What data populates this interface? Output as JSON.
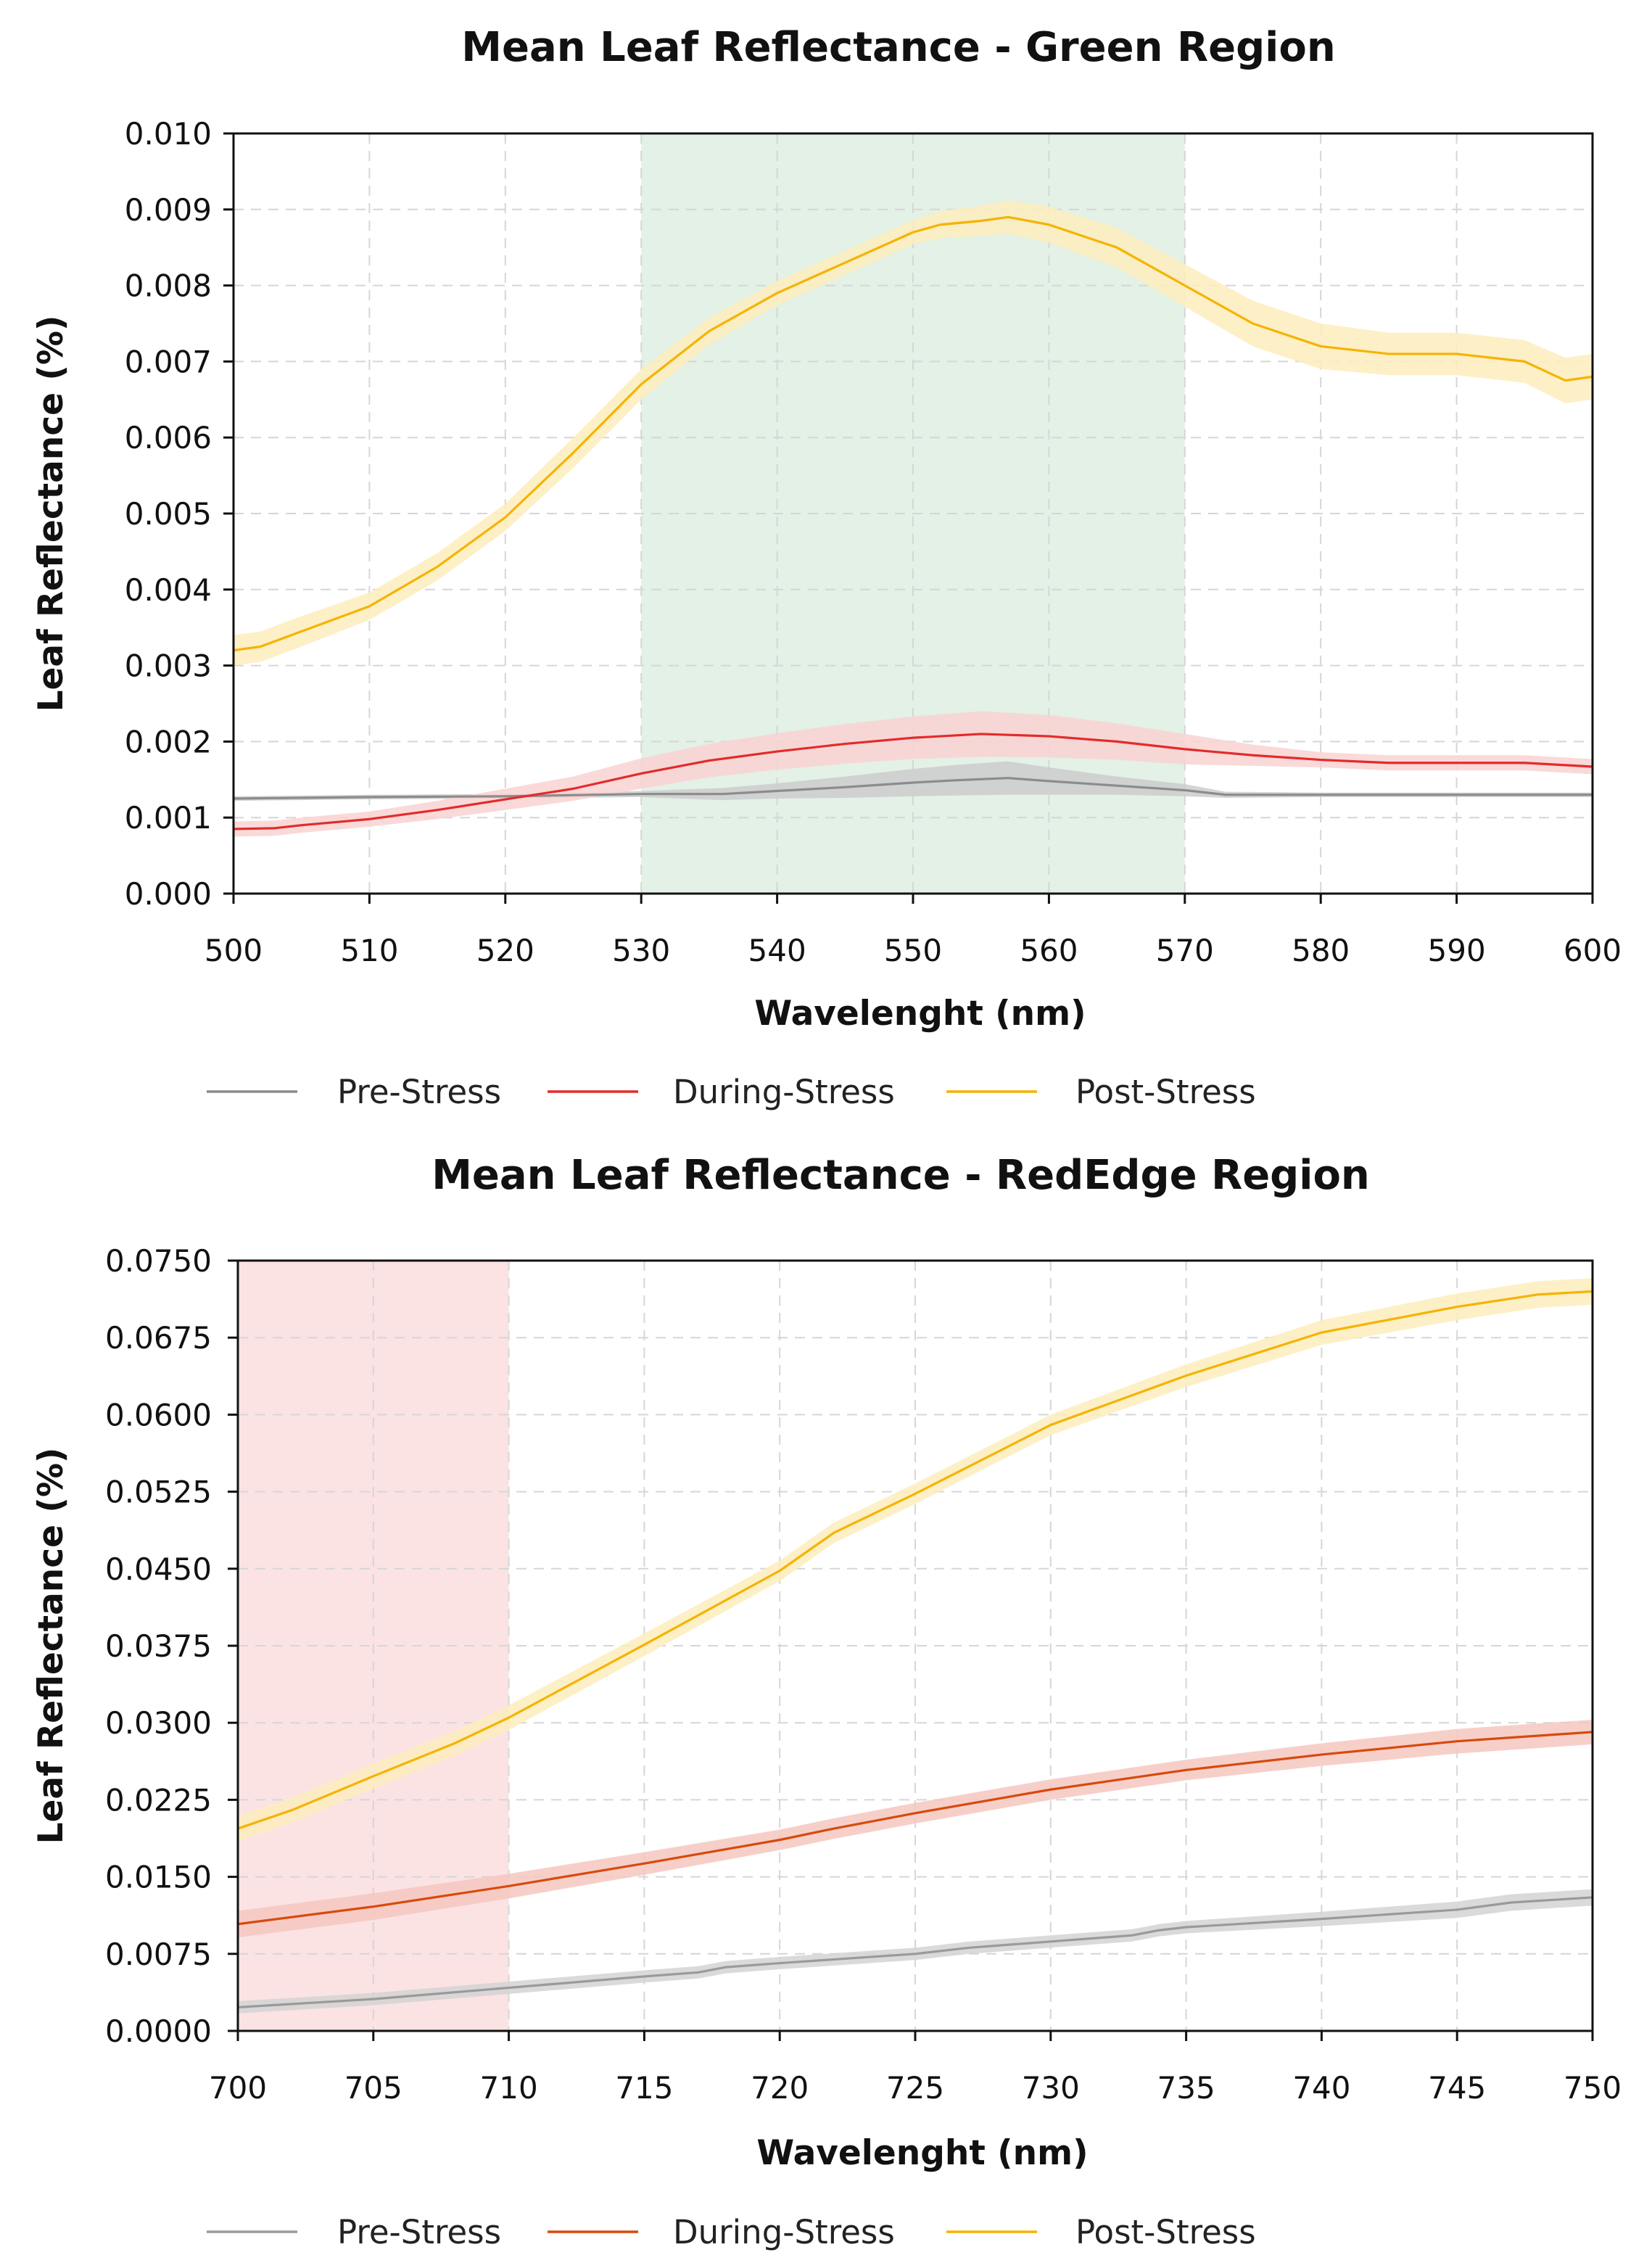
{
  "figure": {
    "background": "#ffffff"
  },
  "chart_data": [
    {
      "type": "line",
      "title": "Mean Leaf Reflectance - Green Region",
      "xlabel": "Wavelenght (nm)",
      "ylabel": "Leaf Reflectance (%)",
      "xlim": [
        500,
        600
      ],
      "ylim": [
        0.0,
        0.01
      ],
      "xticks": [
        500,
        510,
        520,
        530,
        540,
        550,
        560,
        570,
        580,
        590,
        600
      ],
      "yticks": [
        0.0,
        0.001,
        0.002,
        0.003,
        0.004,
        0.005,
        0.006,
        0.007,
        0.008,
        0.009,
        0.01
      ],
      "xtick_labels": [
        "500",
        "510",
        "520",
        "530",
        "540",
        "550",
        "560",
        "570",
        "580",
        "590",
        "600"
      ],
      "ytick_labels": [
        "0.000",
        "0.001",
        "0.002",
        "0.003",
        "0.004",
        "0.005",
        "0.006",
        "0.007",
        "0.008",
        "0.009",
        "0.010"
      ],
      "grid": true,
      "highlight_region": {
        "x_start": 530,
        "x_end": 570,
        "color": "#e3f1e6"
      },
      "legend": {
        "position": "below",
        "entries": [
          "Pre-Stress",
          "During-Stress",
          "Post-Stress"
        ]
      },
      "series": [
        {
          "name": "Pre-Stress",
          "color": "#8c8c8c",
          "band_color": "#cccccc",
          "x": [
            500,
            510,
            520,
            530,
            536,
            540,
            545,
            550,
            553,
            557,
            560,
            565,
            570,
            573,
            580,
            590,
            600
          ],
          "y": [
            0.00125,
            0.00127,
            0.00128,
            0.00131,
            0.00131,
            0.00135,
            0.0014,
            0.00146,
            0.00149,
            0.00152,
            0.00148,
            0.00142,
            0.00136,
            0.0013,
            0.0013,
            0.0013,
            0.0013
          ],
          "band": [
            3e-05,
            3e-05,
            3e-05,
            4e-05,
            8e-05,
            0.0001,
            0.00014,
            0.00018,
            0.0002,
            0.00022,
            0.00018,
            0.00012,
            8e-05,
            4e-05,
            3e-05,
            3e-05,
            3e-05
          ]
        },
        {
          "name": "During-Stress",
          "color": "#e32b2b",
          "band_color": "#f9d2d2",
          "x": [
            500,
            503,
            505,
            510,
            515,
            520,
            525,
            530,
            535,
            540,
            545,
            550,
            555,
            560,
            565,
            570,
            575,
            580,
            585,
            590,
            595,
            600
          ],
          "y": [
            0.00085,
            0.00086,
            0.0009,
            0.00098,
            0.0011,
            0.00124,
            0.00138,
            0.00158,
            0.00175,
            0.00187,
            0.00197,
            0.00205,
            0.0021,
            0.00207,
            0.002,
            0.0019,
            0.00182,
            0.00176,
            0.00172,
            0.00172,
            0.00172,
            0.00167
          ],
          "band": [
            0.0001,
            0.0001,
            0.0001,
            0.0001,
            0.00012,
            0.00014,
            0.00016,
            0.0002,
            0.00022,
            0.00024,
            0.00026,
            0.00028,
            0.0003,
            0.00028,
            0.00024,
            0.0002,
            0.00014,
            0.0001,
            0.0001,
            0.0001,
            0.0001,
            0.0001
          ]
        },
        {
          "name": "Post-Stress",
          "color": "#f5b300",
          "band_color": "#fdedbd",
          "x": [
            500,
            502,
            505,
            510,
            515,
            520,
            525,
            530,
            535,
            540,
            545,
            550,
            552,
            555,
            557,
            560,
            565,
            570,
            575,
            580,
            585,
            590,
            595,
            598,
            600
          ],
          "y": [
            0.0032,
            0.00325,
            0.00345,
            0.00378,
            0.0043,
            0.00495,
            0.0058,
            0.0067,
            0.0074,
            0.0079,
            0.0083,
            0.0087,
            0.0088,
            0.00885,
            0.0089,
            0.0088,
            0.0085,
            0.008,
            0.0075,
            0.0072,
            0.0071,
            0.0071,
            0.007,
            0.00675,
            0.0068
          ],
          "band": [
            0.0002,
            0.0002,
            0.0002,
            0.00018,
            0.00018,
            0.00018,
            0.0002,
            0.0002,
            0.00018,
            0.00016,
            0.00016,
            0.00016,
            0.00018,
            0.0002,
            0.00022,
            0.00024,
            0.00026,
            0.00028,
            0.0003,
            0.0003,
            0.00028,
            0.00028,
            0.00028,
            0.0003,
            0.0003
          ]
        }
      ]
    },
    {
      "type": "line",
      "title": "Mean Leaf Reflectance - RedEdge Region",
      "xlabel": "Wavelenght (nm)",
      "ylabel": "Leaf Reflectance (%)",
      "xlim": [
        700,
        750
      ],
      "ylim": [
        0.0,
        0.075
      ],
      "xticks": [
        700,
        705,
        710,
        715,
        720,
        725,
        730,
        735,
        740,
        745,
        750
      ],
      "yticks": [
        0.0,
        0.0075,
        0.015,
        0.0225,
        0.03,
        0.0375,
        0.045,
        0.0525,
        0.06,
        0.0675,
        0.075
      ],
      "xtick_labels": [
        "700",
        "705",
        "710",
        "715",
        "720",
        "725",
        "730",
        "735",
        "740",
        "745",
        "750"
      ],
      "ytick_labels": [
        "0.0000",
        "0.0075",
        "0.0150",
        "0.0225",
        "0.0300",
        "0.0375",
        "0.0450",
        "0.0525",
        "0.0600",
        "0.0675",
        "0.0750"
      ],
      "grid": true,
      "highlight_region": {
        "x_start": 700,
        "x_end": 710,
        "color": "#fbe3e3"
      },
      "legend": {
        "position": "below",
        "entries": [
          "Pre-Stress",
          "During-Stress",
          "Post-Stress"
        ]
      },
      "series": [
        {
          "name": "Pre-Stress",
          "color": "#9a9a9a",
          "band_color": "#d4d4d4",
          "x": [
            700,
            705,
            710,
            715,
            717,
            718,
            720,
            725,
            727,
            730,
            733,
            734,
            735,
            740,
            745,
            747,
            750
          ],
          "y": [
            0.0023,
            0.0031,
            0.0042,
            0.0053,
            0.0057,
            0.0062,
            0.0066,
            0.0075,
            0.0081,
            0.0087,
            0.0093,
            0.0098,
            0.0101,
            0.0109,
            0.0118,
            0.0125,
            0.013
          ],
          "band": [
            0.0006,
            0.0006,
            0.0006,
            0.0006,
            0.0006,
            0.0006,
            0.0006,
            0.0006,
            0.0006,
            0.0006,
            0.0006,
            0.0006,
            0.0006,
            0.0007,
            0.0008,
            0.0008,
            0.0008
          ]
        },
        {
          "name": "During-Stress",
          "color": "#d74a0d",
          "band_color": "#f6c7c0",
          "x": [
            700,
            705,
            710,
            715,
            720,
            722,
            725,
            730,
            735,
            740,
            745,
            750
          ],
          "y": [
            0.0104,
            0.0121,
            0.0141,
            0.0163,
            0.0186,
            0.0197,
            0.0212,
            0.0235,
            0.0254,
            0.0269,
            0.0282,
            0.0291
          ],
          "band": [
            0.0013,
            0.0013,
            0.0012,
            0.0011,
            0.001,
            0.001,
            0.001,
            0.001,
            0.001,
            0.0011,
            0.0012,
            0.0012
          ]
        },
        {
          "name": "Post-Stress",
          "color": "#f5b300",
          "band_color": "#fdedbd",
          "x": [
            700,
            702,
            705,
            708,
            710,
            715,
            720,
            722,
            725,
            730,
            735,
            740,
            745,
            748,
            750
          ],
          "y": [
            0.0197,
            0.0215,
            0.0248,
            0.028,
            0.0305,
            0.0376,
            0.0448,
            0.0485,
            0.0523,
            0.059,
            0.0638,
            0.068,
            0.0705,
            0.0717,
            0.072
          ],
          "band": [
            0.0012,
            0.0012,
            0.0012,
            0.0012,
            0.0012,
            0.0011,
            0.001,
            0.001,
            0.001,
            0.001,
            0.0011,
            0.0012,
            0.0013,
            0.0013,
            0.0013
          ]
        }
      ]
    }
  ]
}
